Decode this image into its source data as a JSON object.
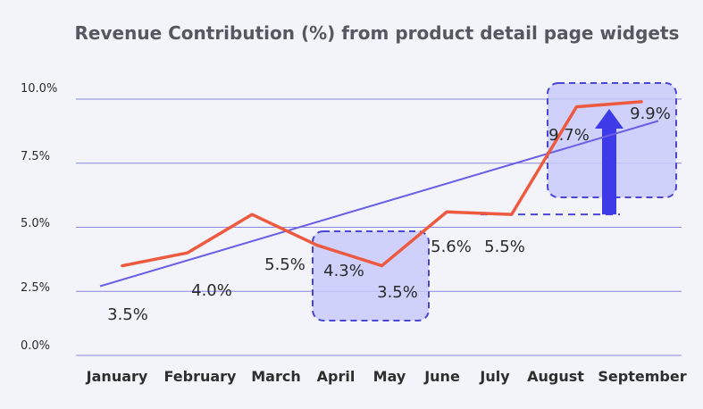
{
  "colors": {
    "background": "#f3f4f9",
    "gridline": "#6f6bd6",
    "series_line": "#ee5a3f",
    "trend_line": "#6a5fe6",
    "highlight_fill": "#c8cafa",
    "highlight_border": "#4a47d6",
    "arrow": "#3f3ae8"
  },
  "chart_data": {
    "type": "line",
    "title": "Revenue Contribution (%)  from product detail page widgets",
    "xlabel": "",
    "ylabel": "",
    "categories": [
      "January",
      "February",
      "March",
      "April",
      "May",
      "June",
      "July",
      "August",
      "September"
    ],
    "series": [
      {
        "values": [
          3.5,
          4.0,
          5.5,
          4.3,
          3.5,
          5.6,
          5.5,
          9.7,
          9.9
        ]
      }
    ],
    "data_labels": [
      "3.5%",
      "4.0%",
      "5.5%",
      "4.3%",
      "3.5%",
      "5.6%",
      "5.5%",
      "9.7%",
      "9.9%"
    ],
    "trendline": {
      "type": "linear",
      "start": 2.7,
      "end": 9.15
    },
    "yticks": [
      "0.0%",
      "2.5%",
      "5.0%",
      "7.5%",
      "10.0%"
    ],
    "ylim": [
      0,
      10
    ],
    "grid": true,
    "legend": "none",
    "annotations": [
      {
        "type": "highlight-box",
        "categories": [
          "April",
          "May"
        ]
      },
      {
        "type": "highlight-box",
        "categories": [
          "August",
          "September"
        ]
      },
      {
        "type": "increase-arrow",
        "from": 5.5,
        "to": 9.9
      }
    ]
  }
}
